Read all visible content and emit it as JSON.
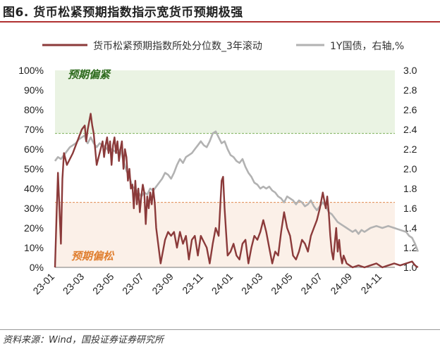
{
  "figure_title": "图6. 货币松紧预期指数指示宽货币预期极强",
  "source": "资料来源：Wind，国投证券证券研究所",
  "colors": {
    "series_red": "#8b3a3a",
    "series_gray": "#b2b2b2",
    "zone_tight": "#eaf3e3",
    "zone_loose": "#fbf0e8",
    "line_tight": "#7cb05a",
    "line_loose": "#e08a50",
    "label_tight": "#2e6b1e",
    "label_loose": "#e07f30",
    "title_rule": "#b03030"
  },
  "chart_data": {
    "type": "line",
    "x_categories": [
      "23-01",
      "23-03",
      "23-05",
      "23-07",
      "23-09",
      "23-11",
      "24-01",
      "24-03",
      "24-05",
      "24-07",
      "24-09",
      "24-11"
    ],
    "y_left": {
      "ticks": [
        "0%",
        "10%",
        "20%",
        "30%",
        "40%",
        "50%",
        "60%",
        "70%",
        "80%",
        "90%",
        "100%"
      ],
      "range": [
        0,
        100
      ]
    },
    "y_right": {
      "ticks": [
        "1.0",
        "1.2",
        "1.4",
        "1.6",
        "1.8",
        "2.0",
        "2.2",
        "2.4",
        "2.6",
        "2.8",
        "3.0"
      ],
      "range": [
        1.0,
        3.0
      ]
    },
    "zones": {
      "tight": {
        "label": "预期偏紧",
        "from": 68,
        "to": 100
      },
      "loose": {
        "label": "预期偏松",
        "from": 0,
        "to": 33
      }
    },
    "series": [
      {
        "name": "货币松紧预期指数所处分位数_3年滚动",
        "axis": "left",
        "points": [
          [
            0,
            0
          ],
          [
            0.05,
            25
          ],
          [
            0.1,
            48
          ],
          [
            0.15,
            30
          ],
          [
            0.2,
            12
          ],
          [
            0.25,
            45
          ],
          [
            0.3,
            58
          ],
          [
            0.4,
            52
          ],
          [
            0.5,
            55
          ],
          [
            0.6,
            58
          ],
          [
            0.7,
            62
          ],
          [
            0.8,
            66
          ],
          [
            0.9,
            70
          ],
          [
            1.0,
            72
          ],
          [
            1.05,
            64
          ],
          [
            1.1,
            70
          ],
          [
            1.2,
            78
          ],
          [
            1.25,
            72
          ],
          [
            1.3,
            68
          ],
          [
            1.35,
            60
          ],
          [
            1.4,
            52
          ],
          [
            1.5,
            58
          ],
          [
            1.6,
            64
          ],
          [
            1.65,
            56
          ],
          [
            1.7,
            62
          ],
          [
            1.75,
            66
          ],
          [
            1.8,
            58
          ],
          [
            1.85,
            64
          ],
          [
            1.9,
            52
          ],
          [
            1.95,
            62
          ],
          [
            2.0,
            66
          ],
          [
            2.05,
            58
          ],
          [
            2.1,
            64
          ],
          [
            2.15,
            54
          ],
          [
            2.2,
            60
          ],
          [
            2.25,
            64
          ],
          [
            2.3,
            50
          ],
          [
            2.35,
            60
          ],
          [
            2.4,
            56
          ],
          [
            2.45,
            44
          ],
          [
            2.5,
            50
          ],
          [
            2.55,
            40
          ],
          [
            2.6,
            42
          ],
          [
            2.65,
            30
          ],
          [
            2.7,
            44
          ],
          [
            2.75,
            32
          ],
          [
            2.8,
            40
          ],
          [
            2.85,
            28
          ],
          [
            2.9,
            36
          ],
          [
            2.95,
            42
          ],
          [
            3.0,
            38
          ],
          [
            3.05,
            22
          ],
          [
            3.1,
            36
          ],
          [
            3.15,
            30
          ],
          [
            3.2,
            38
          ],
          [
            3.25,
            32
          ],
          [
            3.3,
            40
          ],
          [
            3.35,
            33
          ],
          [
            3.4,
            20
          ],
          [
            3.5,
            8
          ],
          [
            3.55,
            2
          ],
          [
            3.6,
            6
          ],
          [
            3.7,
            14
          ],
          [
            3.8,
            18
          ],
          [
            3.9,
            16
          ],
          [
            4.0,
            18
          ],
          [
            4.1,
            10
          ],
          [
            4.2,
            18
          ],
          [
            4.3,
            12
          ],
          [
            4.4,
            16
          ],
          [
            4.5,
            4
          ],
          [
            4.6,
            14
          ],
          [
            4.7,
            16
          ],
          [
            4.8,
            6
          ],
          [
            4.9,
            16
          ],
          [
            5.0,
            13
          ],
          [
            5.1,
            10
          ],
          [
            5.2,
            2
          ],
          [
            5.3,
            12
          ],
          [
            5.4,
            20
          ],
          [
            5.5,
            16
          ],
          [
            5.6,
            44
          ],
          [
            5.65,
            46
          ],
          [
            5.7,
            30
          ],
          [
            5.75,
            18
          ],
          [
            5.8,
            6
          ],
          [
            5.9,
            8
          ],
          [
            6.0,
            12
          ],
          [
            6.1,
            6
          ],
          [
            6.2,
            4
          ],
          [
            6.3,
            12
          ],
          [
            6.4,
            14
          ],
          [
            6.5,
            2
          ],
          [
            6.6,
            10
          ],
          [
            6.7,
            16
          ],
          [
            6.8,
            14
          ],
          [
            6.9,
            18
          ],
          [
            7.0,
            24
          ],
          [
            7.1,
            18
          ],
          [
            7.2,
            10
          ],
          [
            7.3,
            2
          ],
          [
            7.4,
            8
          ],
          [
            7.5,
            6
          ],
          [
            7.6,
            18
          ],
          [
            7.7,
            28
          ],
          [
            7.8,
            20
          ],
          [
            7.9,
            16
          ],
          [
            8.0,
            6
          ],
          [
            8.1,
            4
          ],
          [
            8.2,
            8
          ],
          [
            8.3,
            14
          ],
          [
            8.4,
            12
          ],
          [
            8.5,
            8
          ],
          [
            8.6,
            16
          ],
          [
            8.7,
            20
          ],
          [
            8.8,
            24
          ],
          [
            8.9,
            30
          ],
          [
            9.0,
            38
          ],
          [
            9.05,
            34
          ],
          [
            9.1,
            30
          ],
          [
            9.15,
            36
          ],
          [
            9.2,
            28
          ],
          [
            9.25,
            16
          ],
          [
            9.3,
            8
          ],
          [
            9.35,
            4
          ],
          [
            9.4,
            12
          ],
          [
            9.45,
            20
          ],
          [
            9.5,
            8
          ],
          [
            9.55,
            14
          ],
          [
            9.6,
            6
          ],
          [
            9.65,
            2
          ],
          [
            9.7,
            6
          ],
          [
            9.8,
            2
          ],
          [
            9.9,
            1
          ],
          [
            10.0,
            0
          ],
          [
            10.2,
            1
          ],
          [
            10.4,
            0
          ],
          [
            10.6,
            1
          ],
          [
            10.8,
            2
          ],
          [
            11.0,
            0
          ],
          [
            11.2,
            1
          ],
          [
            11.4,
            2
          ],
          [
            11.6,
            1
          ],
          [
            11.8,
            2
          ],
          [
            12.0,
            3
          ],
          [
            12.1,
            1
          ],
          [
            12.2,
            0
          ]
        ]
      },
      {
        "name": "1Y国债，右轴,%",
        "axis": "right",
        "points": [
          [
            0,
            2.08
          ],
          [
            0.1,
            2.12
          ],
          [
            0.2,
            2.1
          ],
          [
            0.3,
            2.14
          ],
          [
            0.4,
            2.18
          ],
          [
            0.5,
            2.22
          ],
          [
            0.6,
            2.24
          ],
          [
            0.7,
            2.26
          ],
          [
            0.8,
            2.3
          ],
          [
            0.9,
            2.32
          ],
          [
            1.0,
            2.34
          ],
          [
            1.05,
            2.28
          ],
          [
            1.1,
            2.26
          ],
          [
            1.2,
            2.32
          ],
          [
            1.3,
            2.26
          ],
          [
            1.4,
            2.22
          ],
          [
            1.5,
            2.26
          ],
          [
            1.6,
            2.24
          ],
          [
            1.7,
            2.22
          ],
          [
            1.8,
            2.18
          ],
          [
            1.9,
            2.2
          ],
          [
            2.0,
            2.18
          ],
          [
            2.1,
            2.16
          ],
          [
            2.2,
            2.2
          ],
          [
            2.3,
            2.08
          ],
          [
            2.4,
            1.98
          ],
          [
            2.5,
            1.92
          ],
          [
            2.6,
            1.82
          ],
          [
            2.7,
            1.8
          ],
          [
            2.8,
            1.76
          ],
          [
            2.9,
            1.72
          ],
          [
            3.0,
            1.76
          ],
          [
            3.1,
            1.74
          ],
          [
            3.2,
            1.8
          ],
          [
            3.3,
            1.78
          ],
          [
            3.4,
            1.82
          ],
          [
            3.5,
            1.86
          ],
          [
            3.6,
            1.9
          ],
          [
            3.7,
            1.96
          ],
          [
            3.8,
            1.94
          ],
          [
            3.9,
            1.9
          ],
          [
            4.0,
            1.96
          ],
          [
            4.1,
            2.04
          ],
          [
            4.2,
            2.1
          ],
          [
            4.3,
            2.06
          ],
          [
            4.4,
            2.12
          ],
          [
            4.5,
            2.14
          ],
          [
            4.6,
            2.16
          ],
          [
            4.7,
            2.2
          ],
          [
            4.8,
            2.24
          ],
          [
            4.9,
            2.28
          ],
          [
            5.0,
            2.24
          ],
          [
            5.1,
            2.22
          ],
          [
            5.2,
            2.28
          ],
          [
            5.3,
            2.36
          ],
          [
            5.4,
            2.38
          ],
          [
            5.5,
            2.32
          ],
          [
            5.6,
            2.26
          ],
          [
            5.7,
            2.28
          ],
          [
            5.8,
            2.2
          ],
          [
            5.9,
            2.14
          ],
          [
            6.0,
            2.12
          ],
          [
            6.1,
            2.08
          ],
          [
            6.2,
            2.06
          ],
          [
            6.3,
            2.1
          ],
          [
            6.4,
            2.02
          ],
          [
            6.5,
            1.96
          ],
          [
            6.6,
            1.92
          ],
          [
            6.7,
            1.86
          ],
          [
            6.8,
            1.84
          ],
          [
            6.9,
            1.8
          ],
          [
            7.0,
            1.82
          ],
          [
            7.1,
            1.8
          ],
          [
            7.2,
            1.82
          ],
          [
            7.3,
            1.78
          ],
          [
            7.4,
            1.76
          ],
          [
            7.5,
            1.72
          ],
          [
            7.6,
            1.7
          ],
          [
            7.7,
            1.66
          ],
          [
            7.8,
            1.72
          ],
          [
            7.9,
            1.7
          ],
          [
            8.0,
            1.68
          ],
          [
            8.1,
            1.64
          ],
          [
            8.2,
            1.68
          ],
          [
            8.3,
            1.66
          ],
          [
            8.4,
            1.62
          ],
          [
            8.5,
            1.64
          ],
          [
            8.6,
            1.68
          ],
          [
            8.7,
            1.62
          ],
          [
            8.8,
            1.58
          ],
          [
            8.9,
            1.62
          ],
          [
            9.0,
            1.66
          ],
          [
            9.1,
            1.62
          ],
          [
            9.2,
            1.56
          ],
          [
            9.3,
            1.54
          ],
          [
            9.4,
            1.5
          ],
          [
            9.5,
            1.46
          ],
          [
            9.6,
            1.44
          ],
          [
            9.7,
            1.42
          ],
          [
            9.8,
            1.4
          ],
          [
            9.9,
            1.38
          ],
          [
            10.0,
            1.36
          ],
          [
            10.1,
            1.38
          ],
          [
            10.2,
            1.34
          ],
          [
            10.3,
            1.38
          ],
          [
            10.4,
            1.36
          ],
          [
            10.6,
            1.4
          ],
          [
            10.8,
            1.42
          ],
          [
            11.0,
            1.4
          ],
          [
            11.2,
            1.42
          ],
          [
            11.4,
            1.4
          ],
          [
            11.6,
            1.38
          ],
          [
            11.8,
            1.36
          ],
          [
            11.9,
            1.32
          ],
          [
            12.0,
            1.3
          ],
          [
            12.1,
            1.24
          ],
          [
            12.2,
            1.16
          ]
        ]
      }
    ]
  }
}
